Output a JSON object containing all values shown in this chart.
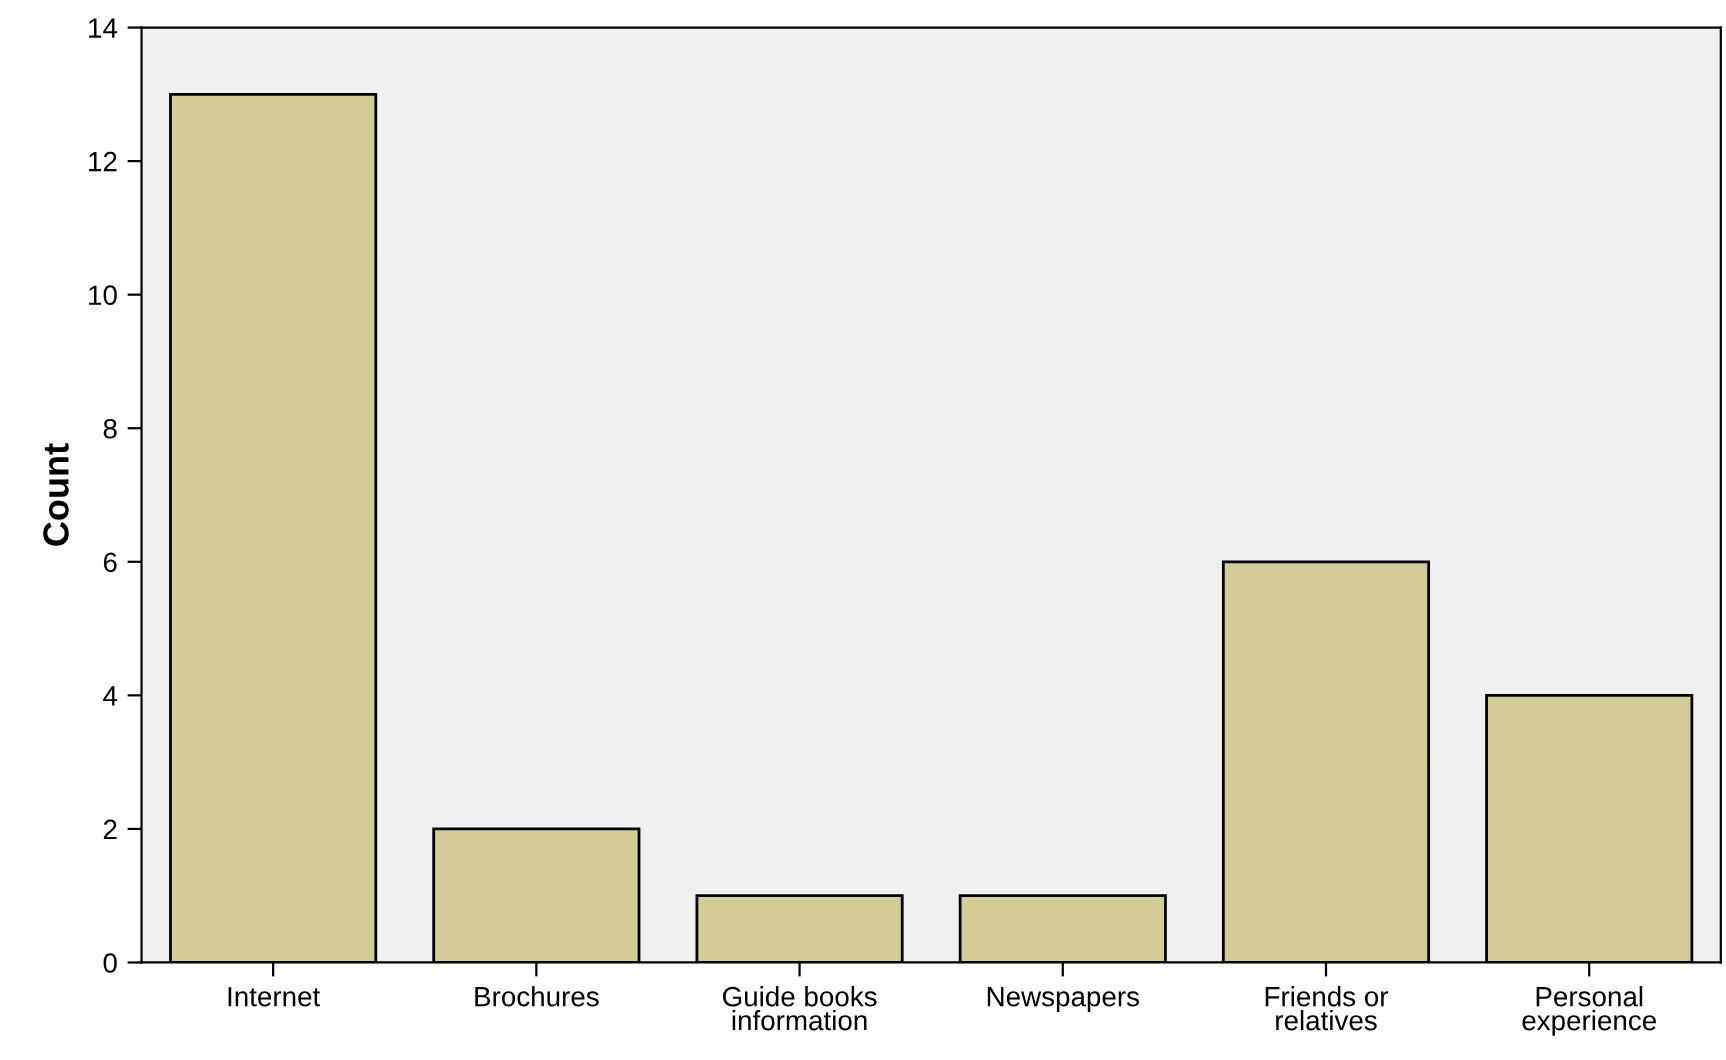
{
  "chart_data": {
    "type": "bar",
    "ylabel": "Count",
    "categories": [
      "Internet",
      "Brochures",
      "Guide books\ninformation",
      "Newspapers",
      "Friends or\nrelatives",
      "Personal\nexperience"
    ],
    "values": [
      13,
      2,
      1,
      1,
      6,
      4
    ],
    "color": "#d3cc96",
    "ylim": [
      0,
      14
    ],
    "yticks": [
      0,
      2,
      4,
      6,
      8,
      10,
      12,
      14
    ],
    "grid": false
  }
}
